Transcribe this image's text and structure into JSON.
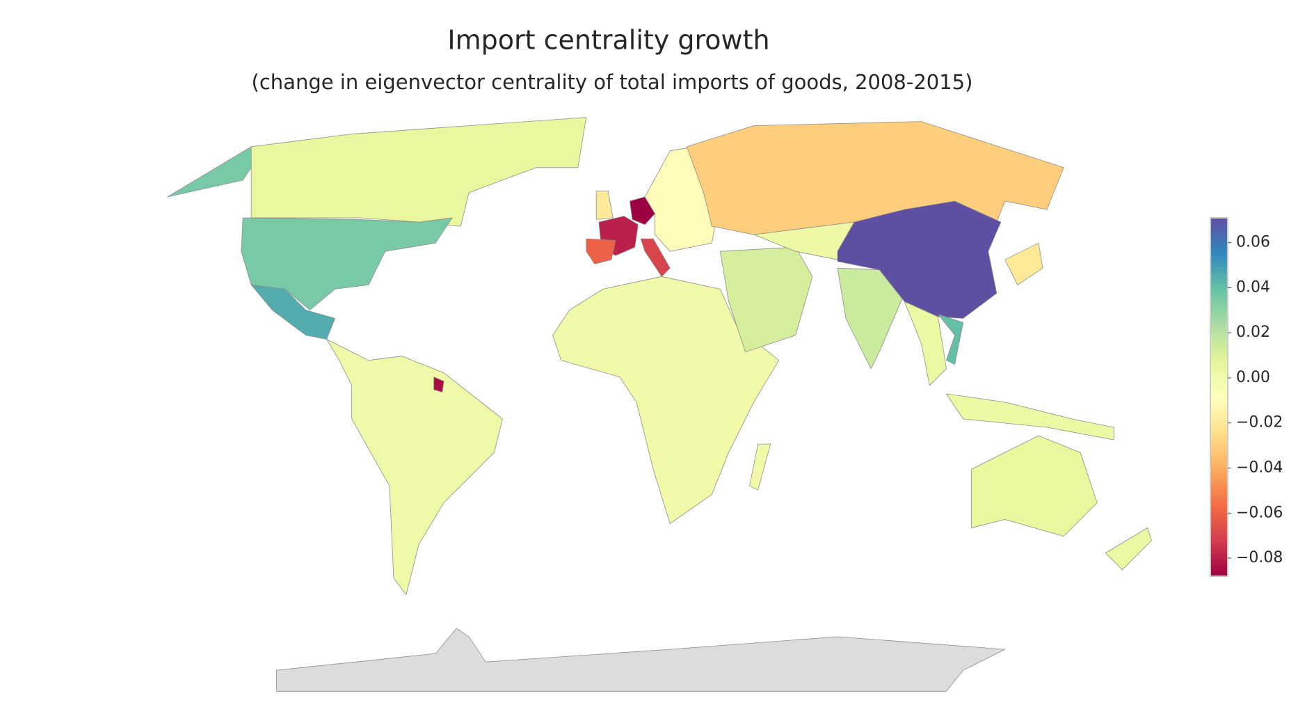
{
  "chart_data": {
    "type": "choropleth",
    "title": "Import centrality growth",
    "subtitle": "(change in eigenvector centrality of total imports of goods, 2008-2015)",
    "colormap": [
      "#9e0142",
      "#d53e4f",
      "#f46d43",
      "#fdae61",
      "#fee08b",
      "#ffffbf",
      "#e6f598",
      "#abdda4",
      "#66c2a5",
      "#3288bd",
      "#5e4fa2"
    ],
    "missing_color": "#dcdcdc",
    "vlim": [
      -0.088,
      0.071
    ],
    "vticks": [
      {
        "value": -0.08,
        "label": "−0.08"
      },
      {
        "value": -0.06,
        "label": "−0.06"
      },
      {
        "value": -0.04,
        "label": "−0.04"
      },
      {
        "value": -0.02,
        "label": "−0.02"
      },
      {
        "value": 0,
        "label": "0.00"
      },
      0.02,
      0.04,
      0.06
    ],
    "values": [
      0.035,
      0.005,
      0.035,
      0.045,
      0.001,
      -0.08,
      -0.088,
      -0.06,
      -0.07,
      -0.01,
      -0.03,
      -0.02,
      0.0,
      0.0,
      0.012,
      0.002,
      0.015,
      0.071,
      0.04,
      0.003,
      -0.02,
      0.003,
      0.005,
      0.003,
      null,
      -0.085
    ]
  }
}
